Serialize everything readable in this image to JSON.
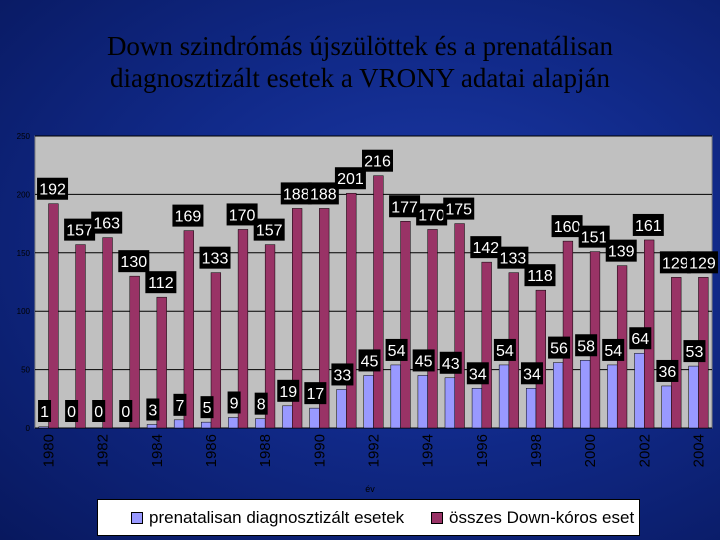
{
  "title_lines": [
    "Down szindrómás újszülöttek és a prenatálisan",
    "diagnosztizált esetek a VRONY adatai alapján"
  ],
  "chart_data": {
    "type": "bar",
    "x": [
      1980,
      1981,
      1982,
      1983,
      1984,
      1985,
      1986,
      1987,
      1988,
      1989,
      1990,
      1991,
      1992,
      1993,
      1994,
      1995,
      1996,
      1997,
      1998,
      1999,
      2000,
      2001,
      2002,
      2003,
      2004
    ],
    "x_tick_labels": [
      "1980",
      "1982",
      "1984",
      "1986",
      "1988",
      "1990",
      "1992",
      "1994",
      "1996",
      "1998",
      "2000",
      "2002",
      "2004"
    ],
    "xlabel": "év",
    "ylim": [
      0,
      250
    ],
    "y_ticks": [
      "0",
      "50",
      "100",
      "150",
      "200",
      "250"
    ],
    "grid": true,
    "series": [
      {
        "name": "prenatalisan diagnosztizált esetek",
        "color": "#9999ff",
        "values": [
          1,
          0,
          0,
          0,
          3,
          7,
          5,
          9,
          8,
          19,
          17,
          33,
          45,
          54,
          45,
          43,
          34,
          54,
          34,
          56,
          58,
          54,
          64,
          36,
          53
        ]
      },
      {
        "name": "összes Down-kóros eset",
        "color": "#993366",
        "values": [
          192,
          157,
          163,
          130,
          112,
          169,
          133,
          170,
          157,
          188,
          188,
          201,
          216,
          177,
          170,
          175,
          142,
          133,
          118,
          160,
          151,
          139,
          161,
          129,
          129
        ]
      }
    ],
    "legend_position": "bottom"
  },
  "colors": {
    "plot_bg": "#c0c0c0",
    "label_bg": "#000000",
    "label_text": "#ffffff"
  }
}
